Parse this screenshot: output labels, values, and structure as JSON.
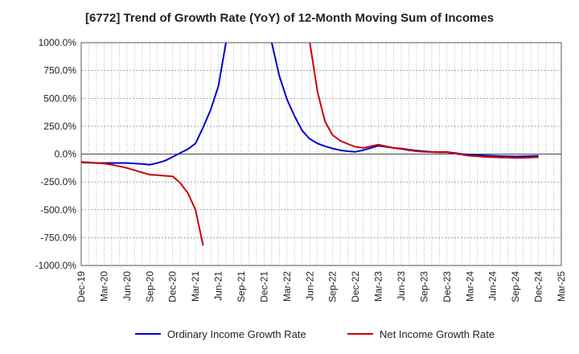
{
  "chart_data": {
    "type": "line",
    "title": "[6772]  Trend of Growth Rate (YoY) of 12-Month Moving Sum of Incomes",
    "xlabel": "",
    "ylabel": "",
    "x_ticks": [
      "Dec-19",
      "Mar-20",
      "Jun-20",
      "Sep-20",
      "Dec-20",
      "Mar-21",
      "Jun-21",
      "Sep-21",
      "Dec-21",
      "Mar-22",
      "Jun-22",
      "Sep-22",
      "Dec-22",
      "Mar-23",
      "Jun-23",
      "Sep-23",
      "Dec-23",
      "Mar-24",
      "Jun-24",
      "Sep-24",
      "Dec-24",
      "Mar-25"
    ],
    "y_ticks": [
      "1000.0%",
      "750.0%",
      "500.0%",
      "250.0%",
      "0.0%",
      "-250.0%",
      "-500.0%",
      "-750.0%",
      "-1000.0%"
    ],
    "ylim": [
      -1000,
      1000
    ],
    "grid": true,
    "legend_position": "bottom",
    "series": [
      {
        "name": "Ordinary Income Growth Rate",
        "color": "#0000cc",
        "points": [
          [
            "Dec-19",
            -75
          ],
          [
            "Jan-20",
            -78
          ],
          [
            "Feb-20",
            -80
          ],
          [
            "Mar-20",
            -80
          ],
          [
            "Apr-20",
            -80
          ],
          [
            "May-20",
            -80
          ],
          [
            "Jun-20",
            -80
          ],
          [
            "Jul-20",
            -85
          ],
          [
            "Aug-20",
            -88
          ],
          [
            "Sep-20",
            -95
          ],
          [
            "Oct-20",
            -80
          ],
          [
            "Nov-20",
            -60
          ],
          [
            "Dec-20",
            -25
          ],
          [
            "Jan-21",
            10
          ],
          [
            "Feb-21",
            45
          ],
          [
            "Mar-21",
            95
          ],
          [
            "Apr-21",
            240
          ],
          [
            "May-21",
            400
          ],
          [
            "Jun-21",
            610
          ],
          [
            "Jul-21",
            1000
          ],
          [
            "Jan-22",
            1000
          ],
          [
            "Feb-22",
            700
          ],
          [
            "Mar-22",
            490
          ],
          [
            "Apr-22",
            340
          ],
          [
            "May-22",
            210
          ],
          [
            "Jun-22",
            135
          ],
          [
            "Jul-22",
            95
          ],
          [
            "Aug-22",
            70
          ],
          [
            "Sep-22",
            50
          ],
          [
            "Oct-22",
            35
          ],
          [
            "Nov-22",
            25
          ],
          [
            "Dec-22",
            20
          ],
          [
            "Jan-23",
            35
          ],
          [
            "Feb-23",
            55
          ],
          [
            "Mar-23",
            75
          ],
          [
            "Apr-23",
            65
          ],
          [
            "May-23",
            55
          ],
          [
            "Jun-23",
            50
          ],
          [
            "Jul-23",
            40
          ],
          [
            "Aug-23",
            30
          ],
          [
            "Sep-23",
            25
          ],
          [
            "Oct-23",
            20
          ],
          [
            "Nov-23",
            18
          ],
          [
            "Dec-23",
            18
          ],
          [
            "Jan-24",
            10
          ],
          [
            "Feb-24",
            0
          ],
          [
            "Mar-24",
            -5
          ],
          [
            "Apr-24",
            -10
          ],
          [
            "May-24",
            -12
          ],
          [
            "Jun-24",
            -15
          ],
          [
            "Jul-24",
            -18
          ],
          [
            "Aug-24",
            -20
          ],
          [
            "Sep-24",
            -22
          ],
          [
            "Oct-24",
            -20
          ],
          [
            "Nov-24",
            -18
          ],
          [
            "Dec-24",
            -15
          ]
        ]
      },
      {
        "name": "Net Income Growth Rate",
        "color": "#cc0000",
        "points": [
          [
            "Dec-19",
            -70
          ],
          [
            "Jan-20",
            -75
          ],
          [
            "Feb-20",
            -80
          ],
          [
            "Mar-20",
            -85
          ],
          [
            "Apr-20",
            -95
          ],
          [
            "May-20",
            -110
          ],
          [
            "Jun-20",
            -125
          ],
          [
            "Jul-20",
            -145
          ],
          [
            "Aug-20",
            -165
          ],
          [
            "Sep-20",
            -185
          ],
          [
            "Oct-20",
            -190
          ],
          [
            "Nov-20",
            -195
          ],
          [
            "Dec-20",
            -200
          ],
          [
            "Jan-21",
            -260
          ],
          [
            "Feb-21",
            -350
          ],
          [
            "Mar-21",
            -500
          ],
          [
            "Apr-21",
            -820
          ],
          [
            "Jun-22",
            1000
          ],
          [
            "Jul-22",
            560
          ],
          [
            "Aug-22",
            290
          ],
          [
            "Sep-22",
            170
          ],
          [
            "Oct-22",
            120
          ],
          [
            "Nov-22",
            90
          ],
          [
            "Dec-22",
            65
          ],
          [
            "Jan-23",
            55
          ],
          [
            "Feb-23",
            70
          ],
          [
            "Mar-23",
            85
          ],
          [
            "Apr-23",
            70
          ],
          [
            "May-23",
            55
          ],
          [
            "Jun-23",
            45
          ],
          [
            "Jul-23",
            35
          ],
          [
            "Aug-23",
            25
          ],
          [
            "Sep-23",
            20
          ],
          [
            "Oct-23",
            18
          ],
          [
            "Nov-23",
            15
          ],
          [
            "Dec-23",
            15
          ],
          [
            "Jan-24",
            5
          ],
          [
            "Feb-24",
            -5
          ],
          [
            "Mar-24",
            -15
          ],
          [
            "Apr-24",
            -20
          ],
          [
            "May-24",
            -25
          ],
          [
            "Jun-24",
            -28
          ],
          [
            "Jul-24",
            -30
          ],
          [
            "Aug-24",
            -32
          ],
          [
            "Sep-24",
            -35
          ],
          [
            "Oct-24",
            -33
          ],
          [
            "Nov-24",
            -30
          ],
          [
            "Dec-24",
            -28
          ]
        ]
      }
    ]
  }
}
